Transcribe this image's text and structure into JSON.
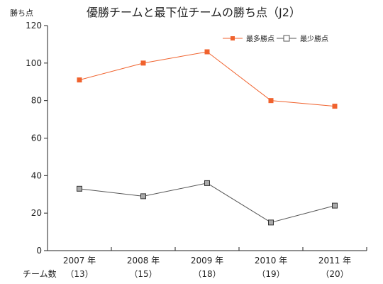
{
  "chart_data": {
    "type": "line",
    "title": "優勝チームと最下位チームの勝ち点（J2）",
    "ylabel": "勝ち点",
    "xlabel": "",
    "ylim": [
      0,
      120
    ],
    "yticks": [
      0,
      20,
      40,
      60,
      80,
      100,
      120
    ],
    "categories": [
      "2007 年",
      "2008 年",
      "2009 年",
      "2010 年",
      "2011 年"
    ],
    "team_count_label": "チーム数",
    "team_counts": [
      "（13）",
      "（15）",
      "（18）",
      "（19）",
      "（20）"
    ],
    "grid": false,
    "legend_position": "top-right",
    "series": [
      {
        "name": "最多勝点",
        "values": [
          91,
          100,
          106,
          80,
          77
        ],
        "color": "#f0622d",
        "marker": "square-filled"
      },
      {
        "name": "最少勝点",
        "values": [
          33,
          29,
          36,
          15,
          24
        ],
        "color": "#555555",
        "marker": "square-gray"
      }
    ]
  }
}
